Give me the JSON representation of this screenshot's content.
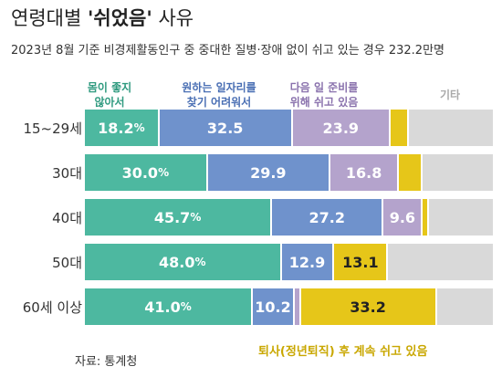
{
  "header": {
    "title_prefix": "연령대별 ",
    "title_bold": "'쉬었음'",
    "title_suffix": " 사유",
    "subtitle": "2023년 8월 기준 비경제활동인구 중 중대한 질병·장애 없이 쉬고 있는 경우 232.2만명"
  },
  "chart_data": {
    "type": "bar",
    "orientation": "horizontal-stacked",
    "categories": [
      "15~29세",
      "30대",
      "40대",
      "50대",
      "60세 이상"
    ],
    "series": [
      {
        "name": "몸이 좋지 않아서",
        "legend_lines": [
          "몸이 좋지",
          "않아서"
        ],
        "color": "#4db8a0",
        "values": [
          18.2,
          30.0,
          45.7,
          48.0,
          41.0
        ],
        "labels": [
          "18.2",
          "30.0",
          "45.7",
          "48.0",
          "41.0"
        ],
        "unit": "%"
      },
      {
        "name": "원하는 일자리를 찾기 어려워서",
        "legend_lines": [
          "원하는 일자리를",
          "찾기 어려워서"
        ],
        "color": "#6f92cc",
        "values": [
          32.5,
          29.9,
          27.2,
          12.9,
          10.2
        ],
        "labels": [
          "32.5",
          "29.9",
          "27.2",
          "12.9",
          "10.2"
        ]
      },
      {
        "name": "다음 일 준비를 위해 쉬고 있음",
        "legend_lines": [
          "다음 일 준비를",
          "위해 쉬고 있음"
        ],
        "color": "#b4a3cc",
        "values": [
          23.9,
          16.8,
          9.6,
          0,
          1.5
        ],
        "labels": [
          "23.9",
          "16.8",
          "9.6",
          "",
          ""
        ]
      },
      {
        "name": "퇴사(정년퇴직) 후 계속 쉬고 있음",
        "color": "#e6c619",
        "values": [
          4.5,
          5.7,
          1.4,
          13.1,
          33.2
        ],
        "labels": [
          "",
          "",
          "",
          "13.1",
          "33.2"
        ]
      },
      {
        "name": "기타",
        "legend_lines": [
          "기타"
        ],
        "color": "#d9d9d9",
        "values": [
          20.9,
          17.6,
          16.1,
          26.0,
          14.1
        ],
        "labels": [
          "",
          "",
          "",
          "",
          ""
        ]
      }
    ],
    "xlim": [
      0,
      100
    ],
    "note": "퇴사(정년퇴직) 후 계속 쉬고 있음",
    "source": "자료: 통계청"
  }
}
